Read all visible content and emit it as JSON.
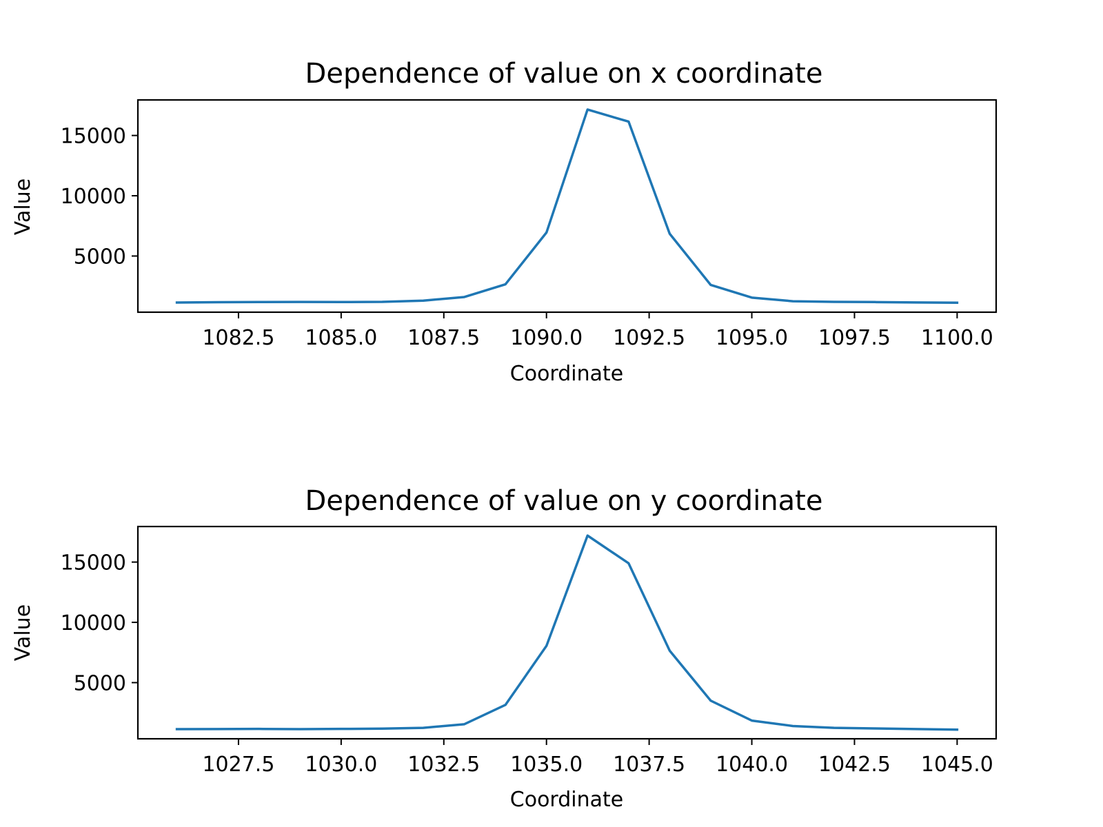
{
  "chart_data": [
    {
      "type": "line",
      "title": "Dependence of value on x coordinate",
      "xlabel": "Coordinate",
      "ylabel": "Value",
      "xlim": [
        1080.05,
        1100.95
      ],
      "ylim": [
        340,
        17950
      ],
      "grid": false,
      "xticks": [
        "1082.5",
        "1085.0",
        "1087.5",
        "1090.0",
        "1092.5",
        "1095.0",
        "1097.5",
        "1100.0"
      ],
      "yticks": [
        "5000",
        "10000",
        "15000"
      ],
      "color": "#1f77b4",
      "series": [
        {
          "x": [
            1081,
            1082,
            1083,
            1084,
            1085,
            1086,
            1087,
            1088,
            1089,
            1090,
            1091,
            1092,
            1093,
            1094,
            1095,
            1096,
            1097,
            1098,
            1099,
            1100
          ],
          "y": [
            1140,
            1170,
            1180,
            1190,
            1180,
            1200,
            1300,
            1600,
            2650,
            6950,
            17150,
            16150,
            6850,
            2600,
            1550,
            1250,
            1200,
            1180,
            1150,
            1130
          ]
        }
      ]
    },
    {
      "type": "line",
      "title": "Dependence of value on y coordinate",
      "xlabel": "Coordinate",
      "ylabel": "Value",
      "xlim": [
        1025.05,
        1045.95
      ],
      "ylim": [
        340,
        17950
      ],
      "grid": false,
      "xticks": [
        "1027.5",
        "1030.0",
        "1032.5",
        "1035.0",
        "1037.5",
        "1040.0",
        "1042.5",
        "1045.0"
      ],
      "yticks": [
        "5000",
        "10000",
        "15000"
      ],
      "color": "#1f77b4",
      "series": [
        {
          "x": [
            1026,
            1027,
            1028,
            1029,
            1030,
            1031,
            1032,
            1033,
            1034,
            1035,
            1036,
            1037,
            1038,
            1039,
            1040,
            1041,
            1042,
            1043,
            1044,
            1045
          ],
          "y": [
            1140,
            1150,
            1160,
            1140,
            1160,
            1180,
            1250,
            1550,
            3150,
            8050,
            17200,
            14900,
            7650,
            3500,
            1850,
            1400,
            1250,
            1200,
            1150,
            1100
          ]
        }
      ]
    }
  ]
}
